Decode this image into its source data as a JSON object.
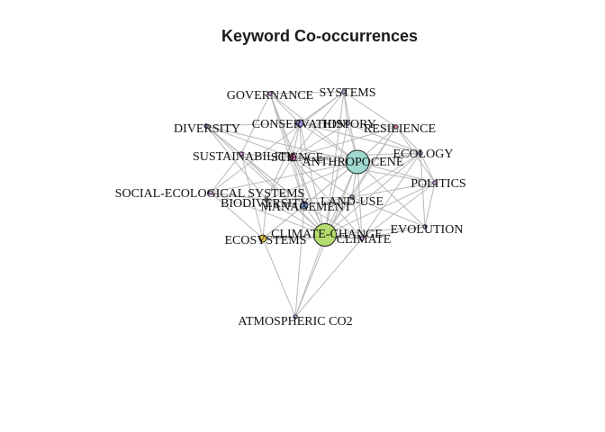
{
  "title": "Keyword Co-occurrences",
  "nodes": [
    {
      "id": "governance",
      "label": "GOVERNANCE",
      "color": "#c9a0dc",
      "size": "tiny"
    },
    {
      "id": "systems",
      "label": "SYSTEMS",
      "color": "#c9a0dc",
      "size": "tiny"
    },
    {
      "id": "diversity",
      "label": "DIVERSITY",
      "color": "#c9a0dc",
      "size": "tiny"
    },
    {
      "id": "conservation",
      "label": "CONSERVATION",
      "color": "#9a8fd8",
      "size": "small"
    },
    {
      "id": "history",
      "label": "HISTORY",
      "color": "#c9a0dc",
      "size": "tiny"
    },
    {
      "id": "resilience",
      "label": "RESILIENCE",
      "color": "#e07b91",
      "size": "tiny"
    },
    {
      "id": "sustainability",
      "label": "SUSTAINABILITY",
      "color": "#c9a0dc",
      "size": "tiny"
    },
    {
      "id": "science",
      "label": "SCIENCE",
      "color": "#d86fb0",
      "size": "small"
    },
    {
      "id": "anthropocene",
      "label": "ANTHROPOCENE",
      "color": "#9fd9cf",
      "size": "large"
    },
    {
      "id": "ecology",
      "label": "ECOLOGY",
      "color": "#c9a0dc",
      "size": "tiny"
    },
    {
      "id": "politics",
      "label": "POLITICS",
      "color": "#c9a0dc",
      "size": "tiny"
    },
    {
      "id": "social_ecological",
      "label": "SOCIAL-ECOLOGICAL SYSTEMS",
      "color": "#c9a0dc",
      "size": "tiny"
    },
    {
      "id": "biodiversity",
      "label": "BIODIVERSITY",
      "color": "#c9a0dc",
      "size": "tiny"
    },
    {
      "id": "land_use",
      "label": "LAND-USE",
      "color": "#c9a0dc",
      "size": "tiny"
    },
    {
      "id": "management",
      "label": "MANAGEMENT",
      "color": "#6f8fc9",
      "size": "small"
    },
    {
      "id": "climate_change",
      "label": "CLIMATE-CHANGE",
      "color": "#b5dc6e",
      "size": "xlarge"
    },
    {
      "id": "climate",
      "label": "CLIMATE",
      "color": "#c9a0dc",
      "size": "tiny"
    },
    {
      "id": "ecosystems",
      "label": "ECOSYSTEMS",
      "color": "#e5c84a",
      "size": "small"
    },
    {
      "id": "evolution",
      "label": "EVOLUTION",
      "color": "#c9a0dc",
      "size": "tiny"
    },
    {
      "id": "atmospheric_co2",
      "label": "ATMOSPHERIC CO2",
      "color": "#c9a0dc",
      "size": "tiny"
    }
  ],
  "edges": [
    [
      "anthropocene",
      "climate_change"
    ],
    [
      "anthropocene",
      "governance"
    ],
    [
      "anthropocene",
      "systems"
    ],
    [
      "anthropocene",
      "diversity"
    ],
    [
      "anthropocene",
      "conservation"
    ],
    [
      "anthropocene",
      "history"
    ],
    [
      "anthropocene",
      "resilience"
    ],
    [
      "anthropocene",
      "sustainability"
    ],
    [
      "anthropocene",
      "science"
    ],
    [
      "anthropocene",
      "ecology"
    ],
    [
      "anthropocene",
      "politics"
    ],
    [
      "anthropocene",
      "social_ecological"
    ],
    [
      "anthropocene",
      "biodiversity"
    ],
    [
      "anthropocene",
      "land_use"
    ],
    [
      "anthropocene",
      "management"
    ],
    [
      "anthropocene",
      "climate"
    ],
    [
      "anthropocene",
      "ecosystems"
    ],
    [
      "anthropocene",
      "evolution"
    ],
    [
      "anthropocene",
      "atmospheric_co2"
    ],
    [
      "climate_change",
      "governance"
    ],
    [
      "climate_change",
      "systems"
    ],
    [
      "climate_change",
      "diversity"
    ],
    [
      "climate_change",
      "conservation"
    ],
    [
      "climate_change",
      "history"
    ],
    [
      "climate_change",
      "resilience"
    ],
    [
      "climate_change",
      "sustainability"
    ],
    [
      "climate_change",
      "science"
    ],
    [
      "climate_change",
      "ecology"
    ],
    [
      "climate_change",
      "politics"
    ],
    [
      "climate_change",
      "social_ecological"
    ],
    [
      "climate_change",
      "biodiversity"
    ],
    [
      "climate_change",
      "land_use"
    ],
    [
      "climate_change",
      "management"
    ],
    [
      "climate_change",
      "climate"
    ],
    [
      "climate_change",
      "ecosystems"
    ],
    [
      "climate_change",
      "evolution"
    ],
    [
      "climate_change",
      "atmospheric_co2"
    ],
    [
      "governance",
      "systems"
    ],
    [
      "governance",
      "conservation"
    ],
    [
      "governance",
      "sustainability"
    ],
    [
      "governance",
      "science"
    ],
    [
      "governance",
      "management"
    ],
    [
      "systems",
      "history"
    ],
    [
      "systems",
      "resilience"
    ],
    [
      "systems",
      "science"
    ],
    [
      "systems",
      "conservation"
    ],
    [
      "systems",
      "social_ecological"
    ],
    [
      "diversity",
      "conservation"
    ],
    [
      "diversity",
      "sustainability"
    ],
    [
      "diversity",
      "science"
    ],
    [
      "diversity",
      "biodiversity"
    ],
    [
      "diversity",
      "management"
    ],
    [
      "conservation",
      "history"
    ],
    [
      "conservation",
      "science"
    ],
    [
      "conservation",
      "biodiversity"
    ],
    [
      "conservation",
      "management"
    ],
    [
      "conservation",
      "ecology"
    ],
    [
      "history",
      "resilience"
    ],
    [
      "history",
      "science"
    ],
    [
      "history",
      "ecology"
    ],
    [
      "resilience",
      "ecology"
    ],
    [
      "resilience",
      "politics"
    ],
    [
      "resilience",
      "science"
    ],
    [
      "resilience",
      "land_use"
    ],
    [
      "sustainability",
      "science"
    ],
    [
      "sustainability",
      "social_ecological"
    ],
    [
      "sustainability",
      "management"
    ],
    [
      "sustainability",
      "ecosystems"
    ],
    [
      "science",
      "ecology"
    ],
    [
      "science",
      "politics"
    ],
    [
      "science",
      "management"
    ],
    [
      "science",
      "biodiversity"
    ],
    [
      "science",
      "land_use"
    ],
    [
      "science",
      "climate"
    ],
    [
      "ecology",
      "politics"
    ],
    [
      "ecology",
      "evolution"
    ],
    [
      "ecology",
      "land_use"
    ],
    [
      "ecology",
      "climate"
    ],
    [
      "politics",
      "land_use"
    ],
    [
      "politics",
      "evolution"
    ],
    [
      "politics",
      "climate"
    ],
    [
      "social_ecological",
      "biodiversity"
    ],
    [
      "social_ecological",
      "management"
    ],
    [
      "social_ecological",
      "ecosystems"
    ],
    [
      "biodiversity",
      "management"
    ],
    [
      "biodiversity",
      "ecosystems"
    ],
    [
      "biodiversity",
      "land_use"
    ],
    [
      "land_use",
      "management"
    ],
    [
      "land_use",
      "climate"
    ],
    [
      "land_use",
      "evolution"
    ],
    [
      "management",
      "ecosystems"
    ],
    [
      "management",
      "climate"
    ],
    [
      "climate",
      "evolution"
    ],
    [
      "climate",
      "ecosystems"
    ],
    [
      "ecosystems",
      "atmospheric_co2"
    ],
    [
      "climate",
      "atmospheric_co2"
    ],
    [
      "management",
      "atmospheric_co2"
    ]
  ]
}
